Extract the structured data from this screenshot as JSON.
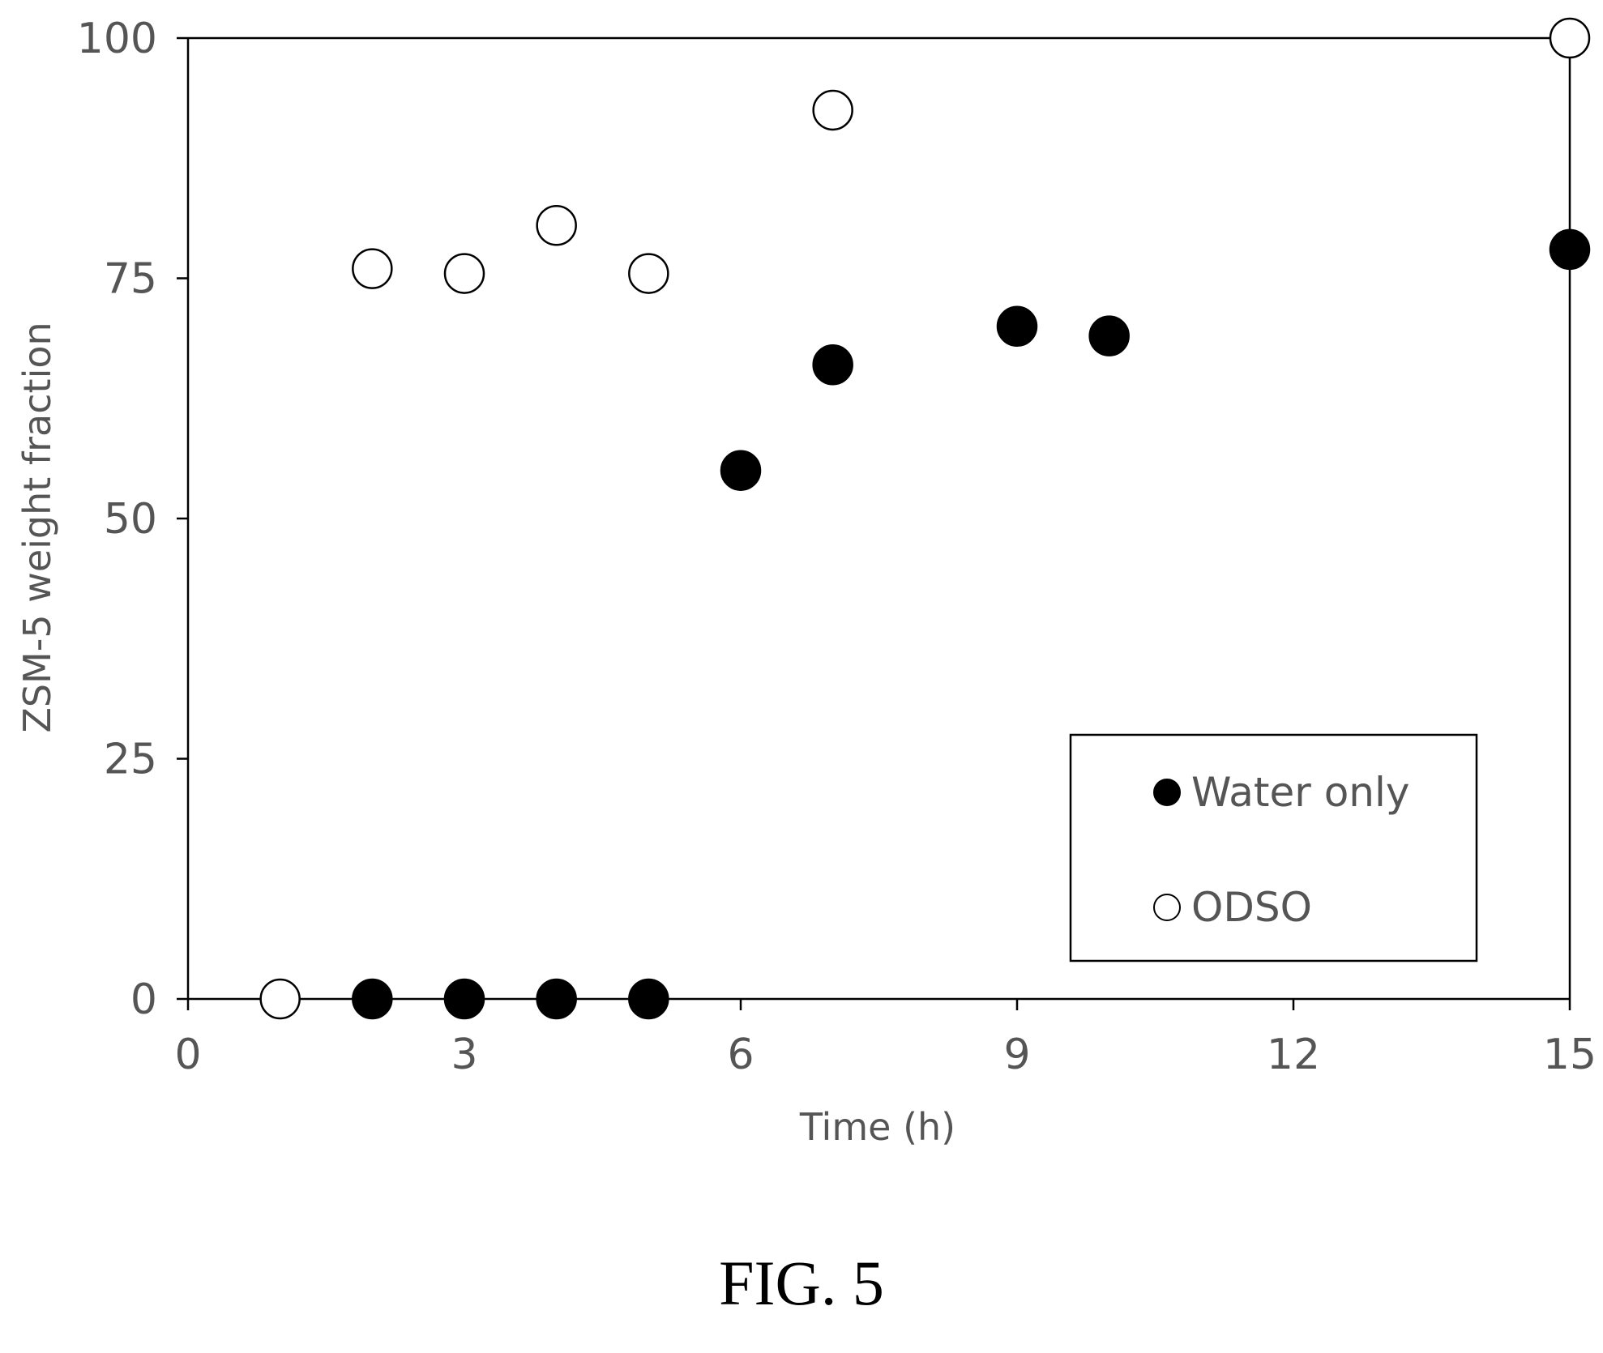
{
  "chart_data": {
    "type": "scatter",
    "title": "",
    "xlabel": "Time (h)",
    "ylabel": "ZSM-5 weight fraction",
    "xlim": [
      0,
      15
    ],
    "ylim": [
      0,
      100
    ],
    "xticks": [
      0,
      3,
      6,
      9,
      12,
      15
    ],
    "yticks": [
      0,
      25,
      50,
      75,
      100
    ],
    "grid": false,
    "legend_position": "bottom-right",
    "series": [
      {
        "name": "Water only",
        "marker": "filled-circle",
        "color": "#000000",
        "x": [
          2,
          3,
          4,
          5,
          6,
          7,
          9,
          10,
          15
        ],
        "y": [
          0,
          0,
          0,
          0,
          55,
          66,
          70,
          69,
          78
        ]
      },
      {
        "name": "ODSO",
        "marker": "open-circle",
        "color": "#000000",
        "x": [
          1,
          2,
          3,
          4,
          5,
          7,
          15
        ],
        "y": [
          0,
          76,
          75.5,
          80.5,
          75.5,
          92.5,
          100
        ]
      }
    ]
  },
  "caption": "FIG. 5"
}
